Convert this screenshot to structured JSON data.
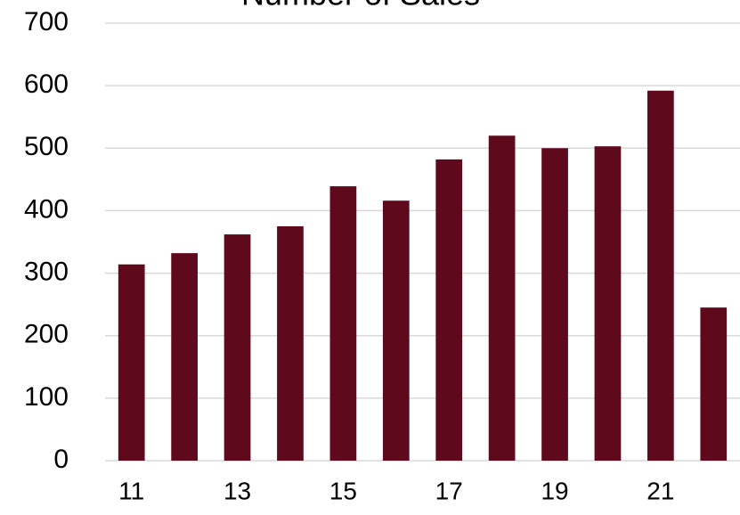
{
  "chart_data": {
    "type": "bar",
    "title": "Number of Sales",
    "categories": [
      "11",
      null,
      "13",
      null,
      "15",
      null,
      "17",
      null,
      "19",
      null,
      "21",
      null
    ],
    "values": [
      314,
      332,
      362,
      375,
      439,
      416,
      482,
      520,
      500,
      503,
      592,
      245
    ],
    "color": "#5f0a1c",
    "ylim": [
      0,
      700
    ],
    "yticks": [
      0,
      100,
      200,
      300,
      400,
      500,
      600,
      700
    ],
    "grid": true
  }
}
